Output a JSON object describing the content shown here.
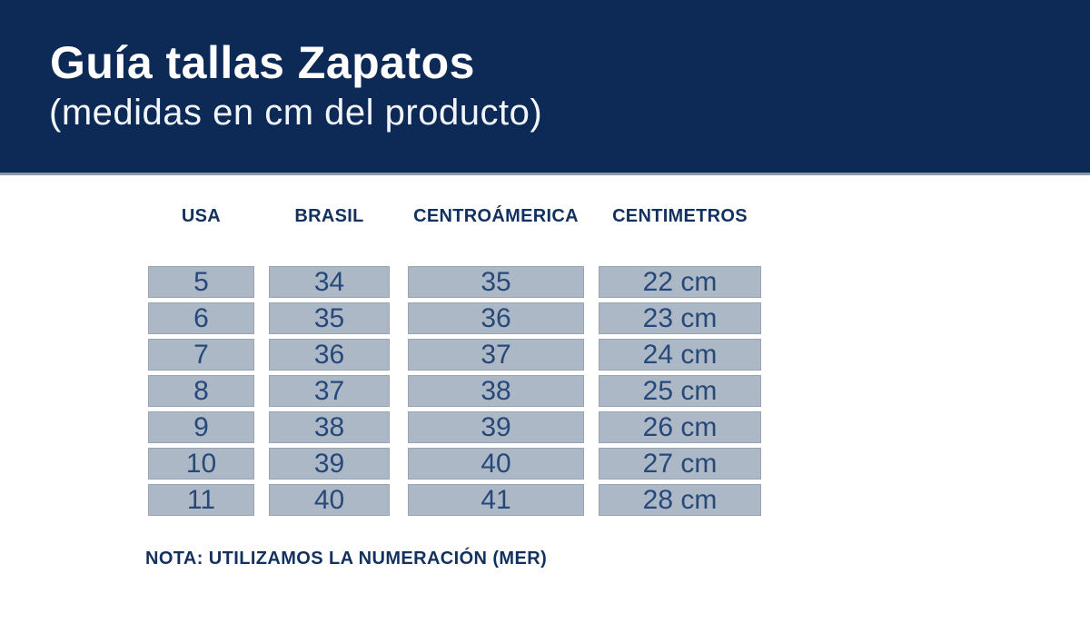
{
  "header": {
    "title": "Guía tallas Zapatos",
    "subtitle": "(medidas en cm del producto)"
  },
  "columns": [
    "USA",
    "BRASIL",
    "CENTROÁMERICA",
    "CENTIMETROS"
  ],
  "rows": [
    {
      "usa": "5",
      "brasil": "34",
      "centroamerica": "35",
      "centimetros": "22 cm"
    },
    {
      "usa": "6",
      "brasil": "35",
      "centroamerica": "36",
      "centimetros": "23 cm"
    },
    {
      "usa": "7",
      "brasil": "36",
      "centroamerica": "37",
      "centimetros": "24 cm"
    },
    {
      "usa": "8",
      "brasil": "37",
      "centroamerica": "38",
      "centimetros": "25 cm"
    },
    {
      "usa": "9",
      "brasil": "38",
      "centroamerica": "39",
      "centimetros": "26 cm"
    },
    {
      "usa": "10",
      "brasil": "39",
      "centroamerica": "40",
      "centimetros": "27 cm"
    },
    {
      "usa": "11",
      "brasil": "40",
      "centroamerica": "41",
      "centimetros": "28 cm"
    }
  ],
  "note": "NOTA: UTILIZAMOS LA NUMERACIÓN (MER)",
  "colors": {
    "banner_background": "#0d2a57",
    "banner_text": "#ffffff",
    "divider": "#8b99ad",
    "cell_background": "#adb8c6",
    "cell_text": "#27497a",
    "heading_text": "#12315e"
  }
}
